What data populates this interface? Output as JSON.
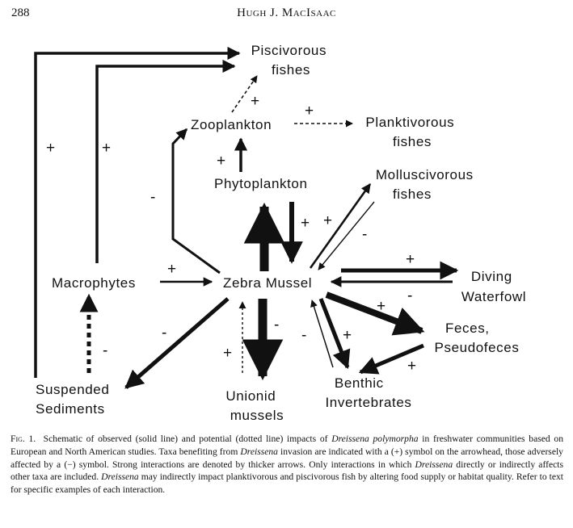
{
  "header": {
    "page_number": "288",
    "running_head": "Hugh J. MacIsaac"
  },
  "nodes": {
    "piscivorous": [
      "Piscivorous",
      "fishes"
    ],
    "zooplankton": [
      "Zooplankton"
    ],
    "planktivorous": [
      "Planktivorous",
      "fishes"
    ],
    "phytoplankton": [
      "Phytoplankton"
    ],
    "molluscivorous": [
      "Molluscivorous",
      "fishes"
    ],
    "macrophytes": [
      "Macrophytes"
    ],
    "zebra_mussel": [
      "Zebra Mussel"
    ],
    "diving_waterfowl": [
      "Diving",
      "Waterfowl"
    ],
    "feces": [
      "Feces,",
      "Pseudofeces"
    ],
    "suspended_sediments": [
      "Suspended",
      "Sediments"
    ],
    "unionid": [
      "Unionid",
      "mussels"
    ],
    "benthic": [
      "Benthic",
      "Invertebrates"
    ]
  },
  "signs": {
    "left_outer_plus": "+",
    "left_inner_plus": "+",
    "zoo_to_pisc_plus": "+",
    "zoo_to_plank_plus": "+",
    "phyto_to_zoo_plus": "+",
    "mussel_to_zoo_minus": "-",
    "mussel_down_plus": "+",
    "mollusc_plus": "+",
    "mollusc_minus": "-",
    "macro_to_mussel_plus": "+",
    "waterfowl_plus": "+",
    "waterfowl_minus": "-",
    "feces_plus": "+",
    "feces_benthic_plus": "+",
    "sediments_minus": "-",
    "sediments_up_minus": "-",
    "unionid_dotted_plus": "+",
    "unionid_minus": "-",
    "benthic_minus": "-",
    "benthic_plus": "+"
  },
  "caption": {
    "label": "Fig. 1.",
    "parts": [
      "Schematic of observed (solid line) and potential (dotted line) impacts of ",
      "Dreissena polymorpha",
      " in freshwater communities based on European and North American studies. Taxa benefiting from ",
      "Dreissena",
      " invasion are indicated with a (+) symbol on the arrowhead, those adversely affected by a (−) symbol. Strong interactions are denoted by thicker arrows. Only interactions in which ",
      "Dreissena",
      " directly or indirectly affects other taxa are included. ",
      "Dreissena",
      " may indirectly impact planktivorous and piscivorous fish by altering food supply or habitat quality. Refer to text for specific examples of each interaction."
    ]
  }
}
